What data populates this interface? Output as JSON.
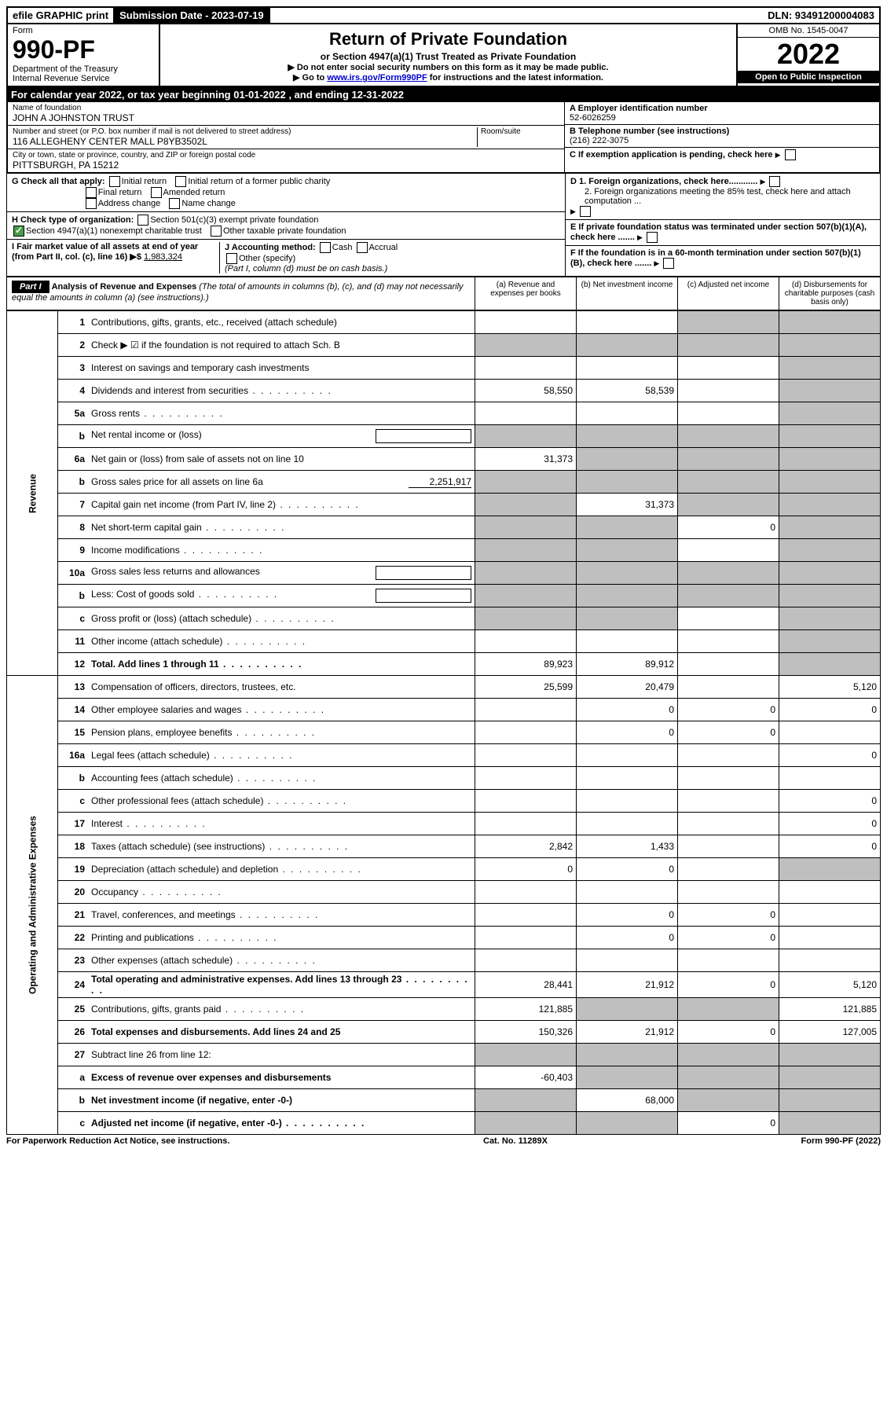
{
  "top_bar": {
    "efile": "efile GRAPHIC print",
    "submission_label": "Submission Date - 2023-07-19",
    "dln": "DLN: 93491200004083"
  },
  "header": {
    "form_word": "Form",
    "form_no": "990-PF",
    "dept": "Department of the Treasury",
    "irs": "Internal Revenue Service",
    "title": "Return of Private Foundation",
    "subtitle": "or Section 4947(a)(1) Trust Treated as Private Foundation",
    "note1": "▶ Do not enter social security numbers on this form as it may be made public.",
    "note2_pre": "▶ Go to ",
    "note2_link": "www.irs.gov/Form990PF",
    "note2_post": " for instructions and the latest information.",
    "omb": "OMB No. 1545-0047",
    "year": "2022",
    "open": "Open to Public Inspection"
  },
  "cal": "For calendar year 2022, or tax year beginning 01-01-2022                          , and ending 12-31-2022",
  "info": {
    "name_label": "Name of foundation",
    "name": "JOHN A JOHNSTON TRUST",
    "addr_label": "Number and street (or P.O. box number if mail is not delivered to street address)",
    "addr": "116 ALLEGHENY CENTER MALL P8YB3502L",
    "room_label": "Room/suite",
    "city_label": "City or town, state or province, country, and ZIP or foreign postal code",
    "city": "PITTSBURGH, PA  15212",
    "ein_label": "A Employer identification number",
    "ein": "52-6026259",
    "tel_label": "B Telephone number (see instructions)",
    "tel": "(216) 222-3075",
    "c_label": "C If exemption application is pending, check here",
    "d1": "D 1. Foreign organizations, check here............",
    "d2": "2. Foreign organizations meeting the 85% test, check here and attach computation ...",
    "e_label": "E  If private foundation status was terminated under section 507(b)(1)(A), check here .......",
    "f_label": "F  If the foundation is in a 60-month termination under section 507(b)(1)(B), check here .......",
    "g_label": "G Check all that apply:",
    "g_opts": [
      "Initial return",
      "Initial return of a former public charity",
      "Final return",
      "Amended return",
      "Address change",
      "Name change"
    ],
    "h_label": "H Check type of organization:",
    "h1": "Section 501(c)(3) exempt private foundation",
    "h2": "Section 4947(a)(1) nonexempt charitable trust",
    "h3": "Other taxable private foundation",
    "i_label": "I Fair market value of all assets at end of year (from Part II, col. (c), line 16) ▶$",
    "i_val": "1,983,324",
    "j_label": "J Accounting method:",
    "j_cash": "Cash",
    "j_accrual": "Accrual",
    "j_other": "Other (specify)",
    "j_note": "(Part I, column (d) must be on cash basis.)"
  },
  "part1": {
    "label": "Part I",
    "title": "Analysis of Revenue and Expenses",
    "title_note": " (The total of amounts in columns (b), (c), and (d) may not necessarily equal the amounts in column (a) (see instructions).)",
    "col_a": "(a)   Revenue and expenses per books",
    "col_b": "(b)   Net investment income",
    "col_c": "(c)   Adjusted net income",
    "col_d": "(d)   Disbursements for charitable purposes (cash basis only)"
  },
  "side_revenue": "Revenue",
  "side_expenses": "Operating and Administrative Expenses",
  "rows": [
    {
      "n": "1",
      "label": "Contributions, gifts, grants, etc., received (attach schedule)",
      "a": "",
      "b": "",
      "c": "shade",
      "d": "shade"
    },
    {
      "n": "2",
      "label": "Check ▶ ☑ if the foundation is not required to attach Sch. B",
      "a": "shade",
      "b": "shade",
      "c": "shade",
      "d": "shade",
      "nob": true
    },
    {
      "n": "3",
      "label": "Interest on savings and temporary cash investments",
      "a": "",
      "b": "",
      "c": "",
      "d": "shade"
    },
    {
      "n": "4",
      "label": "Dividends and interest from securities",
      "a": "58,550",
      "b": "58,539",
      "c": "",
      "d": "shade",
      "dots": true
    },
    {
      "n": "5a",
      "label": "Gross rents",
      "a": "",
      "b": "",
      "c": "",
      "d": "shade",
      "dots": true
    },
    {
      "n": "b",
      "label": "Net rental income or (loss)",
      "a": "shade",
      "b": "shade",
      "c": "shade",
      "d": "shade",
      "inline": true
    },
    {
      "n": "6a",
      "label": "Net gain or (loss) from sale of assets not on line 10",
      "a": "31,373",
      "b": "shade",
      "c": "shade",
      "d": "shade"
    },
    {
      "n": "b",
      "label": "Gross sales price for all assets on line 6a",
      "inline_val": "2,251,917",
      "a": "shade",
      "b": "shade",
      "c": "shade",
      "d": "shade"
    },
    {
      "n": "7",
      "label": "Capital gain net income (from Part IV, line 2)",
      "a": "shade",
      "b": "31,373",
      "c": "shade",
      "d": "shade",
      "dots": true
    },
    {
      "n": "8",
      "label": "Net short-term capital gain",
      "a": "shade",
      "b": "shade",
      "c": "0",
      "d": "shade",
      "dots": true
    },
    {
      "n": "9",
      "label": "Income modifications",
      "a": "shade",
      "b": "shade",
      "c": "",
      "d": "shade",
      "dots": true
    },
    {
      "n": "10a",
      "label": "Gross sales less returns and allowances",
      "a": "shade",
      "b": "shade",
      "c": "shade",
      "d": "shade",
      "inline": true
    },
    {
      "n": "b",
      "label": "Less: Cost of goods sold",
      "a": "shade",
      "b": "shade",
      "c": "shade",
      "d": "shade",
      "inline": true,
      "dots": true
    },
    {
      "n": "c",
      "label": "Gross profit or (loss) (attach schedule)",
      "a": "shade",
      "b": "shade",
      "c": "",
      "d": "shade",
      "dots": true
    },
    {
      "n": "11",
      "label": "Other income (attach schedule)",
      "a": "",
      "b": "",
      "c": "",
      "d": "shade",
      "dots": true
    },
    {
      "n": "12",
      "label": "Total. Add lines 1 through 11",
      "a": "89,923",
      "b": "89,912",
      "c": "",
      "d": "shade",
      "bold": true,
      "dots": true
    }
  ],
  "exp_rows": [
    {
      "n": "13",
      "label": "Compensation of officers, directors, trustees, etc.",
      "a": "25,599",
      "b": "20,479",
      "c": "",
      "d": "5,120"
    },
    {
      "n": "14",
      "label": "Other employee salaries and wages",
      "a": "",
      "b": "0",
      "c": "0",
      "d": "0",
      "dots": true
    },
    {
      "n": "15",
      "label": "Pension plans, employee benefits",
      "a": "",
      "b": "0",
      "c": "0",
      "d": "",
      "dots": true
    },
    {
      "n": "16a",
      "label": "Legal fees (attach schedule)",
      "a": "",
      "b": "",
      "c": "",
      "d": "0",
      "dots": true
    },
    {
      "n": "b",
      "label": "Accounting fees (attach schedule)",
      "a": "",
      "b": "",
      "c": "",
      "d": "",
      "dots": true
    },
    {
      "n": "c",
      "label": "Other professional fees (attach schedule)",
      "a": "",
      "b": "",
      "c": "",
      "d": "0",
      "dots": true
    },
    {
      "n": "17",
      "label": "Interest",
      "a": "",
      "b": "",
      "c": "",
      "d": "0",
      "dots": true
    },
    {
      "n": "18",
      "label": "Taxes (attach schedule) (see instructions)",
      "a": "2,842",
      "b": "1,433",
      "c": "",
      "d": "0",
      "dots": true
    },
    {
      "n": "19",
      "label": "Depreciation (attach schedule) and depletion",
      "a": "0",
      "b": "0",
      "c": "",
      "d": "shade",
      "dots": true
    },
    {
      "n": "20",
      "label": "Occupancy",
      "a": "",
      "b": "",
      "c": "",
      "d": "",
      "dots": true
    },
    {
      "n": "21",
      "label": "Travel, conferences, and meetings",
      "a": "",
      "b": "0",
      "c": "0",
      "d": "",
      "dots": true
    },
    {
      "n": "22",
      "label": "Printing and publications",
      "a": "",
      "b": "0",
      "c": "0",
      "d": "",
      "dots": true
    },
    {
      "n": "23",
      "label": "Other expenses (attach schedule)",
      "a": "",
      "b": "",
      "c": "",
      "d": "",
      "dots": true
    },
    {
      "n": "24",
      "label": "Total operating and administrative expenses. Add lines 13 through 23",
      "a": "28,441",
      "b": "21,912",
      "c": "0",
      "d": "5,120",
      "bold": true,
      "dots": true
    },
    {
      "n": "25",
      "label": "Contributions, gifts, grants paid",
      "a": "121,885",
      "b": "shade",
      "c": "shade",
      "d": "121,885",
      "dots": true
    },
    {
      "n": "26",
      "label": "Total expenses and disbursements. Add lines 24 and 25",
      "a": "150,326",
      "b": "21,912",
      "c": "0",
      "d": "127,005",
      "bold": true
    },
    {
      "n": "27",
      "label": "Subtract line 26 from line 12:",
      "a": "shade",
      "b": "shade",
      "c": "shade",
      "d": "shade"
    },
    {
      "n": "a",
      "label": "Excess of revenue over expenses and disbursements",
      "a": "-60,403",
      "b": "shade",
      "c": "shade",
      "d": "shade",
      "bold": true
    },
    {
      "n": "b",
      "label": "Net investment income (if negative, enter -0-)",
      "a": "shade",
      "b": "68,000",
      "c": "shade",
      "d": "shade",
      "bold": true
    },
    {
      "n": "c",
      "label": "Adjusted net income (if negative, enter -0-)",
      "a": "shade",
      "b": "shade",
      "c": "0",
      "d": "shade",
      "bold": true,
      "dots": true
    }
  ],
  "footer": {
    "left": "For Paperwork Reduction Act Notice, see instructions.",
    "mid": "Cat. No. 11289X",
    "right": "Form 990-PF (2022)"
  }
}
